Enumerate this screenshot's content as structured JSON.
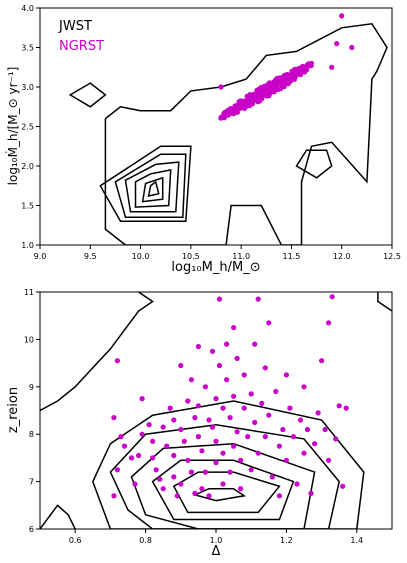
{
  "chart_data": [
    {
      "type": "scatter",
      "xlabel": "log₁₀M_h/M_⊙",
      "ylabel": "log₁₀Ṁ_h/[M_⊙ yr⁻¹]",
      "xlim": [
        9.0,
        12.5
      ],
      "ylim": [
        1.0,
        4.0
      ],
      "xticks": [
        "9.0",
        "9.5",
        "10.0",
        "10.5",
        "11.0",
        "11.5",
        "12.0",
        "12.5"
      ],
      "yticks": [
        "1.0",
        "1.5",
        "2.0",
        "2.5",
        "3.0",
        "3.5",
        "4.0"
      ],
      "grid": false,
      "legend_placement": "top-left",
      "series": [
        {
          "name": "JWST",
          "kind": "contour",
          "color": "#000000"
        },
        {
          "name": "NGRST",
          "kind": "scatter",
          "color": "#c800c8",
          "center": [
            11.25,
            2.95
          ],
          "approx_points": 260
        }
      ],
      "contours": [
        [
          [
            10.1,
            1.75
          ],
          [
            10.08,
            1.62
          ],
          [
            10.18,
            1.65
          ],
          [
            10.15,
            1.8
          ]
        ],
        [
          [
            10.05,
            1.78
          ],
          [
            10.02,
            1.55
          ],
          [
            10.22,
            1.58
          ],
          [
            10.22,
            1.85
          ]
        ],
        [
          [
            9.95,
            1.8
          ],
          [
            9.95,
            1.48
          ],
          [
            10.28,
            1.5
          ],
          [
            10.3,
            1.95
          ],
          [
            10.1,
            1.9
          ]
        ],
        [
          [
            9.85,
            1.82
          ],
          [
            9.9,
            1.42
          ],
          [
            10.35,
            1.42
          ],
          [
            10.38,
            2.05
          ],
          [
            10.15,
            2.02
          ]
        ],
        [
          [
            9.75,
            1.8
          ],
          [
            9.85,
            1.35
          ],
          [
            10.42,
            1.35
          ],
          [
            10.45,
            2.15
          ],
          [
            10.2,
            2.15
          ]
        ],
        [
          [
            9.6,
            1.75
          ],
          [
            9.8,
            1.3
          ],
          [
            10.45,
            1.3
          ],
          [
            10.5,
            2.25
          ],
          [
            10.2,
            2.25
          ]
        ],
        [
          [
            9.65,
            2.6
          ],
          [
            9.65,
            1.8
          ],
          [
            9.65,
            1.2
          ],
          [
            9.85,
            1.0
          ],
          [
            10.85,
            1.0
          ],
          [
            10.9,
            1.5
          ],
          [
            11.2,
            1.5
          ],
          [
            11.4,
            1.0
          ],
          [
            11.6,
            1.0
          ],
          [
            11.6,
            1.8
          ],
          [
            11.7,
            2.25
          ],
          [
            11.9,
            2.3
          ],
          [
            12.25,
            1.8
          ],
          [
            12.3,
            3.1
          ],
          [
            12.35,
            3.2
          ],
          [
            12.45,
            3.5
          ],
          [
            12.3,
            3.8
          ],
          [
            12.0,
            3.75
          ],
          [
            11.55,
            3.45
          ],
          [
            11.25,
            3.4
          ],
          [
            11.05,
            3.1
          ],
          [
            10.8,
            3.0
          ],
          [
            10.5,
            2.95
          ],
          [
            10.3,
            2.7
          ],
          [
            10.0,
            2.7
          ],
          [
            9.8,
            2.75
          ]
        ],
        [
          [
            9.3,
            2.9
          ],
          [
            9.5,
            3.05
          ],
          [
            9.65,
            2.9
          ],
          [
            9.5,
            2.75
          ]
        ],
        [
          [
            11.55,
            2.0
          ],
          [
            11.75,
            1.85
          ],
          [
            11.9,
            2.0
          ],
          [
            11.85,
            2.2
          ],
          [
            11.65,
            2.2
          ]
        ]
      ],
      "title": ""
    },
    {
      "type": "scatter",
      "xlabel": "Δ",
      "ylabel": "z_reion",
      "xlim": [
        0.5,
        1.5
      ],
      "ylim": [
        6,
        11
      ],
      "xticks": [
        "0.6",
        "0.8",
        "1.0",
        "1.2",
        "1.4"
      ],
      "yticks": [
        "6",
        "7",
        "8",
        "9",
        "10",
        "11"
      ],
      "grid": false,
      "series": [
        {
          "name": "JWST",
          "kind": "contour",
          "color": "#000000"
        },
        {
          "name": "NGRST",
          "kind": "scatter",
          "color": "#c800c8"
        }
      ],
      "contours": [
        [
          [
            0.94,
            6.72
          ],
          [
            1.0,
            6.6
          ],
          [
            1.08,
            6.7
          ],
          [
            1.05,
            6.85
          ],
          [
            0.98,
            6.85
          ]
        ],
        [
          [
            0.88,
            6.9
          ],
          [
            0.92,
            6.35
          ],
          [
            1.12,
            6.35
          ],
          [
            1.18,
            6.9
          ],
          [
            1.05,
            7.2
          ],
          [
            0.95,
            7.2
          ]
        ],
        [
          [
            0.82,
            7.0
          ],
          [
            0.88,
            6.2
          ],
          [
            1.18,
            6.2
          ],
          [
            1.22,
            7.0
          ],
          [
            1.05,
            7.45
          ],
          [
            0.9,
            7.45
          ]
        ],
        [
          [
            0.76,
            7.1
          ],
          [
            0.8,
            6.3
          ],
          [
            0.95,
            6.0
          ],
          [
            1.25,
            6.0
          ],
          [
            1.28,
            7.2
          ],
          [
            1.05,
            7.8
          ],
          [
            0.85,
            7.7
          ]
        ],
        [
          [
            0.7,
            7.2
          ],
          [
            0.75,
            6.4
          ],
          [
            0.82,
            6.0
          ],
          [
            1.32,
            6.0
          ],
          [
            1.35,
            7.0
          ],
          [
            1.25,
            7.9
          ],
          [
            1.0,
            8.2
          ],
          [
            0.8,
            8.0
          ]
        ],
        [
          [
            0.65,
            7.0
          ],
          [
            0.7,
            6.0
          ],
          [
            1.4,
            6.0
          ],
          [
            1.42,
            7.2
          ],
          [
            1.3,
            8.3
          ],
          [
            1.05,
            8.7
          ],
          [
            0.82,
            8.4
          ],
          [
            0.7,
            7.8
          ]
        ],
        [
          [
            0.5,
            8.5
          ],
          [
            0.55,
            8.7
          ],
          [
            0.6,
            9.0
          ],
          [
            0.65,
            9.4
          ],
          [
            0.7,
            9.8
          ],
          [
            0.78,
            10.6
          ],
          [
            0.82,
            10.8
          ],
          [
            0.78,
            11.0
          ]
        ],
        [
          [
            0.5,
            6.0
          ],
          [
            0.55,
            6.5
          ],
          [
            0.58,
            6.3
          ],
          [
            0.6,
            6.0
          ]
        ],
        [
          [
            1.46,
            11.0
          ],
          [
            1.46,
            10.8
          ],
          [
            1.5,
            10.6
          ]
        ]
      ],
      "points": [
        [
          0.72,
          9.55
        ],
        [
          0.71,
          8.35
        ],
        [
          0.73,
          7.95
        ],
        [
          0.74,
          7.75
        ],
        [
          0.76,
          7.5
        ],
        [
          0.72,
          7.25
        ],
        [
          0.71,
          6.7
        ],
        [
          0.78,
          7.55
        ],
        [
          0.79,
          8.0
        ],
        [
          0.79,
          8.75
        ],
        [
          0.81,
          8.2
        ],
        [
          0.82,
          7.85
        ],
        [
          0.82,
          7.5
        ],
        [
          0.83,
          7.25
        ],
        [
          0.84,
          7.05
        ],
        [
          0.85,
          6.85
        ],
        [
          0.85,
          8.15
        ],
        [
          0.86,
          7.75
        ],
        [
          0.87,
          8.55
        ],
        [
          0.88,
          8.3
        ],
        [
          0.88,
          7.55
        ],
        [
          0.88,
          7.1
        ],
        [
          0.89,
          6.7
        ],
        [
          0.9,
          6.95
        ],
        [
          0.9,
          8.1
        ],
        [
          0.91,
          7.85
        ],
        [
          0.92,
          8.7
        ],
        [
          0.92,
          7.45
        ],
        [
          0.93,
          9.15
        ],
        [
          0.93,
          7.2
        ],
        [
          0.94,
          8.35
        ],
        [
          0.94,
          6.75
        ],
        [
          0.95,
          8.6
        ],
        [
          0.95,
          7.95
        ],
        [
          0.96,
          7.65
        ],
        [
          0.96,
          6.85
        ],
        [
          0.97,
          9.0
        ],
        [
          0.97,
          7.2
        ],
        [
          0.98,
          8.3
        ],
        [
          0.98,
          6.7
        ],
        [
          0.99,
          9.75
        ],
        [
          0.99,
          8.15
        ],
        [
          1.0,
          8.75
        ],
        [
          1.0,
          7.85
        ],
        [
          1.0,
          7.4
        ],
        [
          1.01,
          10.85
        ],
        [
          1.01,
          9.45
        ],
        [
          1.02,
          8.55
        ],
        [
          1.02,
          7.6
        ],
        [
          1.02,
          6.95
        ],
        [
          1.03,
          9.9
        ],
        [
          1.03,
          9.15
        ],
        [
          1.04,
          8.35
        ],
        [
          1.04,
          7.2
        ],
        [
          1.05,
          8.8
        ],
        [
          1.05,
          7.75
        ],
        [
          1.06,
          9.6
        ],
        [
          1.06,
          8.05
        ],
        [
          1.07,
          7.45
        ],
        [
          1.07,
          6.85
        ],
        [
          1.08,
          9.25
        ],
        [
          1.08,
          8.55
        ],
        [
          1.09,
          7.95
        ],
        [
          1.1,
          8.85
        ],
        [
          1.1,
          7.25
        ],
        [
          1.11,
          9.9
        ],
        [
          1.11,
          8.25
        ],
        [
          1.12,
          10.85
        ],
        [
          1.12,
          7.6
        ],
        [
          1.13,
          8.65
        ],
        [
          1.14,
          9.4
        ],
        [
          1.14,
          7.95
        ],
        [
          1.15,
          10.35
        ],
        [
          1.15,
          8.4
        ],
        [
          1.16,
          7.1
        ],
        [
          1.17,
          8.9
        ],
        [
          1.18,
          7.75
        ],
        [
          1.18,
          6.7
        ],
        [
          1.19,
          8.1
        ],
        [
          1.2,
          9.25
        ],
        [
          1.2,
          7.45
        ],
        [
          1.21,
          8.55
        ],
        [
          1.22,
          7.95
        ],
        [
          1.23,
          6.95
        ],
        [
          1.24,
          8.3
        ],
        [
          1.25,
          9.0
        ],
        [
          1.25,
          7.6
        ],
        [
          1.26,
          8.1
        ],
        [
          1.27,
          6.75
        ],
        [
          1.28,
          7.8
        ],
        [
          1.29,
          8.45
        ],
        [
          1.3,
          9.55
        ],
        [
          1.31,
          8.1
        ],
        [
          1.32,
          10.35
        ],
        [
          1.33,
          10.9
        ],
        [
          1.34,
          7.9
        ],
        [
          1.35,
          8.6
        ],
        [
          1.36,
          6.9
        ],
        [
          1.37,
          8.55
        ],
        [
          1.32,
          7.45
        ],
        [
          0.77,
          6.95
        ],
        [
          0.9,
          9.45
        ],
        [
          0.95,
          9.85
        ],
        [
          1.05,
          10.25
        ]
      ],
      "title": ""
    }
  ]
}
